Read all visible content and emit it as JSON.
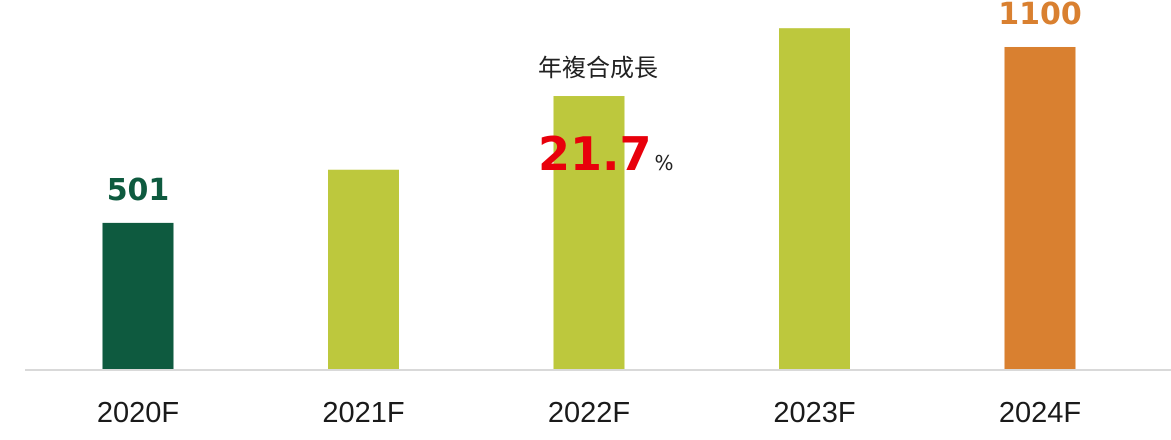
{
  "chart_data": {
    "type": "bar",
    "categories": [
      "2020F",
      "2021F",
      "2022F",
      "2023F",
      "2024F"
    ],
    "values": [
      501,
      682,
      933,
      1164,
      1100
    ],
    "value_labels": [
      "501",
      "",
      "",
      "",
      "1100"
    ],
    "bar_colors": [
      "#0e5a3f",
      "#bdc83d",
      "#bdc83d",
      "#bdc83d",
      "#d98030"
    ],
    "label_colors": [
      "#0e5a3f",
      "",
      "",
      "",
      "#d98030"
    ],
    "ylim": [
      0,
      1260
    ],
    "grid": false,
    "annotation": {
      "caption": "年複合成長",
      "value": "21.7",
      "unit": "%",
      "value_color": "#e8000b"
    }
  }
}
